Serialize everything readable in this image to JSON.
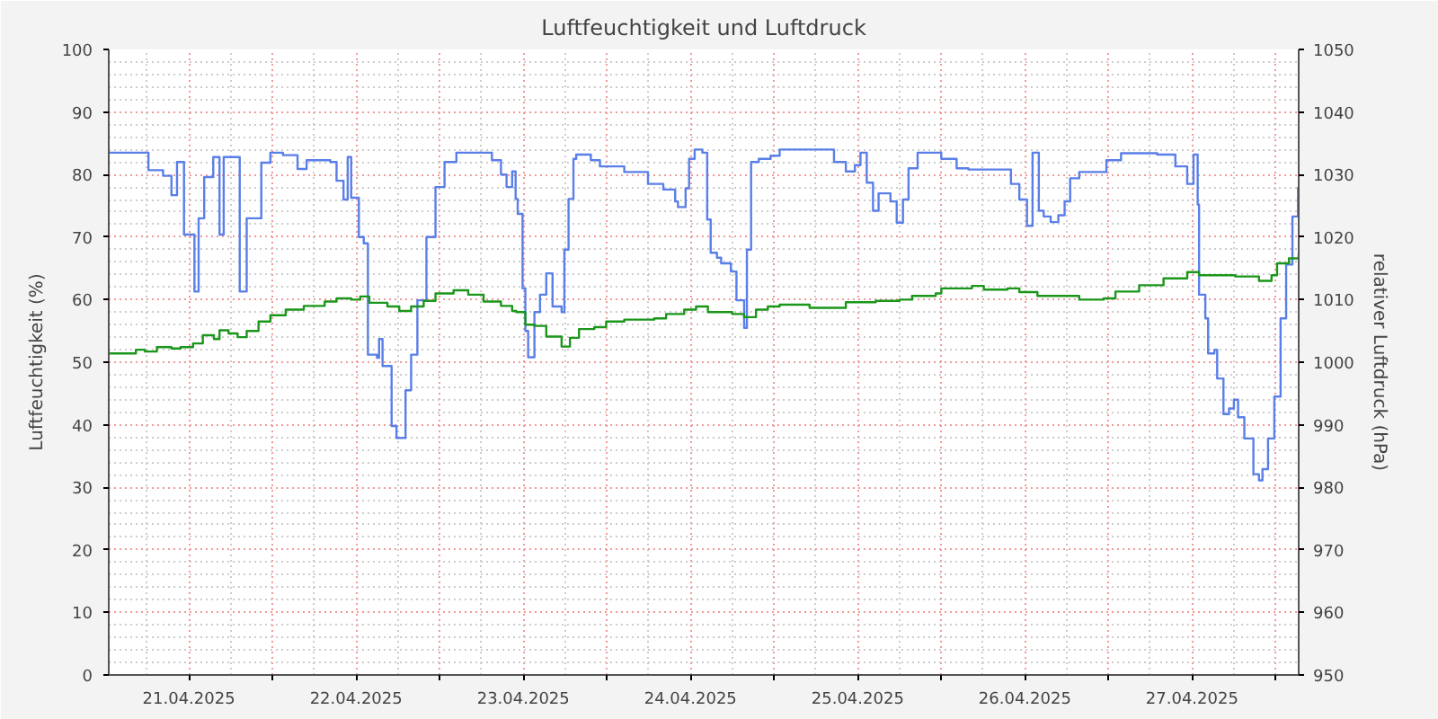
{
  "chart_data": {
    "type": "step",
    "title": "Luftfeuchtigkeit und Luftdruck",
    "ylabel": "Luftfeuchtigkeit (%)",
    "y2label": "relativer Luftdruck (hPa)",
    "xlim": [
      "2025-04-21T00:30",
      "2025-04-28T03:18"
    ],
    "xticks": [
      {
        "value": "2025-04-21T12:00",
        "label": "21.04.2025"
      },
      {
        "value": "2025-04-22",
        "label": null
      },
      {
        "value": "2025-04-22T12:00",
        "label": "22.04.2025"
      },
      {
        "value": "2025-04-23",
        "label": null
      },
      {
        "value": "2025-04-23T12:00",
        "label": "23.04.2025"
      },
      {
        "value": "2025-04-24",
        "label": null
      },
      {
        "value": "2025-04-24T12:00",
        "label": "24.04.2025"
      },
      {
        "value": "2025-04-25",
        "label": null
      },
      {
        "value": "2025-04-25T12:00",
        "label": "25.04.2025"
      },
      {
        "value": "2025-04-26",
        "label": null
      },
      {
        "value": "2025-04-26T12:00",
        "label": "26.04.2025"
      },
      {
        "value": "2025-04-27",
        "label": null
      },
      {
        "value": "2025-04-27T12:00",
        "label": "27.04.2025"
      },
      {
        "value": "2025-04-28",
        "label": null
      }
    ],
    "ylim": [
      0,
      100
    ],
    "yticks": [
      0,
      10,
      20,
      30,
      40,
      50,
      60,
      70,
      80,
      90,
      100
    ],
    "y2lim": [
      950,
      1050
    ],
    "y2ticks": [
      950,
      960,
      970,
      980,
      990,
      1000,
      1010,
      1020,
      1030,
      1040,
      1050
    ],
    "grid": true,
    "series": [
      {
        "color": "#5a7fe8",
        "x": [
          "2025-04-21T00:30",
          "2025-04-21T03:06",
          "2025-04-21T06:12",
          "2025-04-21T08:18",
          "2025-04-21T09:30",
          "2025-04-21T10:18",
          "2025-04-21T11:18",
          "2025-04-21T12:48",
          "2025-04-21T13:24",
          "2025-04-21T14:12",
          "2025-04-21T15:30",
          "2025-04-21T16:24",
          "2025-04-21T17:00",
          "2025-04-21T18:06",
          "2025-04-21T19:18",
          "2025-04-21T20:18",
          "2025-04-21T22:24",
          "2025-04-21T23:42",
          "2025-04-22T01:30",
          "2025-04-22T03:36",
          "2025-04-22T04:54",
          "2025-04-22T08:18",
          "2025-04-22T09:12",
          "2025-04-22T10:12",
          "2025-04-22T10:48",
          "2025-04-22T11:18",
          "2025-04-22T12:24",
          "2025-04-22T13:06",
          "2025-04-22T13:42",
          "2025-04-22T15:00",
          "2025-04-22T15:18",
          "2025-04-22T15:48",
          "2025-04-22T17:06",
          "2025-04-22T17:48",
          "2025-04-22T19:06",
          "2025-04-22T19:54",
          "2025-04-22T20:48",
          "2025-04-22T22:06",
          "2025-04-22T23:24",
          "2025-04-23T00:42",
          "2025-04-23T02:24",
          "2025-04-23T05:00",
          "2025-04-23T07:30",
          "2025-04-23T08:48",
          "2025-04-23T09:36",
          "2025-04-23T10:24",
          "2025-04-23T10:54",
          "2025-04-23T11:12",
          "2025-04-23T11:54",
          "2025-04-23T12:18",
          "2025-04-23T12:42",
          "2025-04-23T13:36",
          "2025-04-23T14:24",
          "2025-04-23T15:18",
          "2025-04-23T16:12",
          "2025-04-23T17:30",
          "2025-04-23T17:54",
          "2025-04-23T18:30",
          "2025-04-23T19:12",
          "2025-04-23T19:36",
          "2025-04-23T21:42",
          "2025-04-23T23:00",
          "2025-04-24T01:36",
          "2025-04-24T02:30",
          "2025-04-24T05:06",
          "2025-04-24T05:54",
          "2025-04-24T08:06",
          "2025-04-24T09:48",
          "2025-04-24T10:12",
          "2025-04-24T11:18",
          "2025-04-24T11:48",
          "2025-04-24T12:36",
          "2025-04-24T13:42",
          "2025-04-24T14:24",
          "2025-04-24T14:54",
          "2025-04-24T15:48",
          "2025-04-24T16:24",
          "2025-04-24T17:48",
          "2025-04-24T18:36",
          "2025-04-24T19:42",
          "2025-04-24T20:06",
          "2025-04-24T20:42",
          "2025-04-24T21:48",
          "2025-04-24T23:30",
          "2025-04-25T00:48",
          "2025-04-25T05:06",
          "2025-04-25T08:36",
          "2025-04-25T10:18",
          "2025-04-25T11:36",
          "2025-04-25T12:24",
          "2025-04-25T13:18",
          "2025-04-25T14:12",
          "2025-04-25T15:00",
          "2025-04-25T16:42",
          "2025-04-25T17:36",
          "2025-04-25T18:30",
          "2025-04-25T19:18",
          "2025-04-25T20:36",
          "2025-04-26T00:00",
          "2025-04-26T02:12",
          "2025-04-26T03:54",
          "2025-04-26T07:48",
          "2025-04-26T10:00",
          "2025-04-26T11:12",
          "2025-04-26T12:18",
          "2025-04-26T13:06",
          "2025-04-26T14:00",
          "2025-04-26T14:42",
          "2025-04-26T15:42",
          "2025-04-26T16:48",
          "2025-04-26T17:42",
          "2025-04-26T18:30",
          "2025-04-26T19:48",
          "2025-04-26T22:54",
          "2025-04-26T23:42",
          "2025-04-27T01:48",
          "2025-04-27T07:00",
          "2025-04-27T09:36",
          "2025-04-27T11:18",
          "2025-04-27T12:12",
          "2025-04-27T12:48",
          "2025-04-27T13:00",
          "2025-04-27T13:54",
          "2025-04-27T14:18",
          "2025-04-27T15:12",
          "2025-04-27T15:36",
          "2025-04-27T16:30",
          "2025-04-27T17:18",
          "2025-04-27T18:00",
          "2025-04-27T18:36",
          "2025-04-27T19:30",
          "2025-04-27T20:48",
          "2025-04-27T21:36",
          "2025-04-27T22:06",
          "2025-04-27T22:54",
          "2025-04-27T23:48",
          "2025-04-28T00:42",
          "2025-04-28T01:30",
          "2025-04-28T02:24",
          "2025-04-28T03:12"
        ],
        "values": [
          83.5,
          83.5,
          80.7,
          79.8,
          76.7,
          82,
          70.4,
          61.3,
          73,
          79.6,
          82.8,
          70.4,
          82.8,
          82.8,
          61.3,
          73,
          81.9,
          83.5,
          83.1,
          80.9,
          82.3,
          82,
          79,
          76,
          82.8,
          76.3,
          70,
          69,
          51.2,
          50.7,
          53.7,
          49.4,
          39.8,
          37.9,
          45.5,
          51.2,
          59.9,
          70,
          78,
          82,
          83.5,
          83.5,
          82.3,
          80,
          78,
          80.5,
          76.1,
          73.7,
          61.8,
          55,
          50.8,
          58,
          60.8,
          64.2,
          58.9,
          58,
          68,
          76.1,
          82.5,
          83.2,
          82.3,
          81.3,
          81.3,
          80.4,
          80.4,
          78.5,
          77.6,
          75.7,
          74.8,
          77.8,
          82.5,
          84,
          83.5,
          72.8,
          67.5,
          66.7,
          65.8,
          64.5,
          59.9,
          55.5,
          68,
          82,
          82.5,
          83,
          84,
          84,
          82,
          80.5,
          81.5,
          83.5,
          78.7,
          74.2,
          77,
          75.7,
          72.3,
          76,
          81,
          83.5,
          82.5,
          81,
          80.8,
          80.8,
          78.5,
          76,
          71.8,
          83.5,
          74.2,
          73.3,
          72.4,
          73.5,
          75.7,
          79.4,
          80.4,
          80.4,
          82.3,
          83.4,
          83.2,
          81.3,
          78.5,
          83.2,
          75.2,
          60.8,
          57,
          51.4,
          52,
          47.4,
          41.7,
          42.6,
          44,
          41.2,
          37.8,
          32.1,
          31.1,
          32.9,
          37.8,
          44.5,
          57,
          65.6,
          73.3,
          78
        ]
      },
      {
        "color": "#1a961a",
        "axis": "y2",
        "x": [
          "2025-04-21T00:30",
          "2025-04-21T04:24",
          "2025-04-21T05:42",
          "2025-04-21T07:24",
          "2025-04-21T09:30",
          "2025-04-21T10:48",
          "2025-04-21T12:36",
          "2025-04-21T14:00",
          "2025-04-21T15:36",
          "2025-04-21T16:24",
          "2025-04-21T17:42",
          "2025-04-21T19:00",
          "2025-04-21T20:18",
          "2025-04-21T22:00",
          "2025-04-21T23:42",
          "2025-04-22T01:54",
          "2025-04-22T04:30",
          "2025-04-22T07:30",
          "2025-04-22T09:12",
          "2025-04-22T11:18",
          "2025-04-22T12:36",
          "2025-04-22T13:54",
          "2025-04-22T16:30",
          "2025-04-22T18:12",
          "2025-04-22T19:54",
          "2025-04-22T21:42",
          "2025-04-22T23:24",
          "2025-04-23T02:00",
          "2025-04-23T04:06",
          "2025-04-23T06:18",
          "2025-04-23T08:48",
          "2025-04-23T10:24",
          "2025-04-23T11:00",
          "2025-04-23T12:18",
          "2025-04-23T13:36",
          "2025-04-23T15:18",
          "2025-04-23T17:30",
          "2025-04-23T18:42",
          "2025-04-23T20:00",
          "2025-04-23T22:12",
          "2025-04-23T23:54",
          "2025-04-24T02:30",
          "2025-04-24T06:48",
          "2025-04-24T08:30",
          "2025-04-24T11:06",
          "2025-04-24T12:48",
          "2025-04-24T14:30",
          "2025-04-24T18:00",
          "2025-04-24T19:42",
          "2025-04-24T21:24",
          "2025-04-24T23:06",
          "2025-04-25T00:48",
          "2025-04-25T05:06",
          "2025-04-25T10:18",
          "2025-04-25T14:36",
          "2025-04-25T18:00",
          "2025-04-25T19:48",
          "2025-04-25T23:12",
          "2025-04-26T00:00",
          "2025-04-26T04:24",
          "2025-04-26T06:06",
          "2025-04-26T09:30",
          "2025-04-26T11:12",
          "2025-04-26T13:48",
          "2025-04-26T17:18",
          "2025-04-26T19:48",
          "2025-04-26T23:18",
          "2025-04-27T01:00",
          "2025-04-27T04:24",
          "2025-04-27T07:54",
          "2025-04-27T11:18",
          "2025-04-27T13:00",
          "2025-04-27T18:12",
          "2025-04-27T21:36",
          "2025-04-27T23:24",
          "2025-04-28T00:12",
          "2025-04-28T01:54",
          "2025-04-28T03:18"
        ],
        "values": [
          1001.4,
          1002,
          1001.7,
          1002.4,
          1002.2,
          1002.4,
          1003,
          1004.3,
          1003.7,
          1005.1,
          1004.6,
          1004,
          1005,
          1006.5,
          1007.5,
          1008.4,
          1009,
          1009.7,
          1010.2,
          1010,
          1010.5,
          1009.5,
          1008.9,
          1008.2,
          1008.9,
          1009.8,
          1011,
          1011.5,
          1010.8,
          1009.7,
          1009,
          1008.2,
          1008,
          1006,
          1005.8,
          1004.1,
          1002.5,
          1003.9,
          1005.3,
          1005.6,
          1006.5,
          1006.8,
          1007,
          1007.7,
          1008.4,
          1008.9,
          1008,
          1007.7,
          1007.2,
          1008.4,
          1008.9,
          1009.2,
          1008.7,
          1009.6,
          1009.8,
          1010,
          1010.6,
          1011,
          1011.8,
          1012.2,
          1011.6,
          1011.8,
          1011.2,
          1010.6,
          1010.6,
          1010,
          1010.2,
          1011.3,
          1012.3,
          1013.4,
          1014.4,
          1013.9,
          1013.7,
          1013,
          1013.9,
          1015.8,
          1016.6,
          1017.3
        ]
      }
    ]
  }
}
